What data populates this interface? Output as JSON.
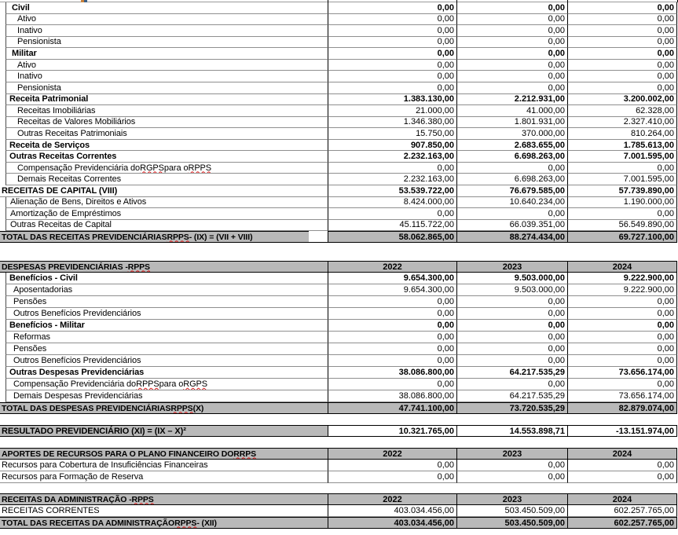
{
  "colors": {
    "header_fill": "#b9b9b9",
    "grid_gray": "#8f8f8f",
    "grid_black": "#000000",
    "squiggle_red": "#e01b1b"
  },
  "tables": [
    {
      "name": "receitas-previdenciarias",
      "rows": [
        {
          "kind": "section",
          "indent": "iB",
          "gutter": true,
          "label": "Civil",
          "values": [
            "0,00",
            "0,00",
            "0,00"
          ]
        },
        {
          "kind": "detail",
          "indent": "iC",
          "gutter": true,
          "label": "Ativo",
          "values": [
            "0,00",
            "0,00",
            "0,00"
          ]
        },
        {
          "kind": "detail",
          "indent": "iC",
          "gutter": true,
          "label": "Inativo",
          "values": [
            "0,00",
            "0,00",
            "0,00"
          ]
        },
        {
          "kind": "detail",
          "indent": "iC",
          "gutter": true,
          "label": "Pensionista",
          "values": [
            "0,00",
            "0,00",
            "0,00"
          ]
        },
        {
          "kind": "section",
          "indent": "iB",
          "gutter": true,
          "label": "Militar",
          "values": [
            "0,00",
            "0,00",
            "0,00"
          ]
        },
        {
          "kind": "detail",
          "indent": "iC",
          "gutter": true,
          "label": "Ativo",
          "values": [
            "0,00",
            "0,00",
            "0,00"
          ]
        },
        {
          "kind": "detail",
          "indent": "iC",
          "gutter": true,
          "label": "Inativo",
          "values": [
            "0,00",
            "0,00",
            "0,00"
          ]
        },
        {
          "kind": "detail",
          "indent": "iC",
          "gutter": true,
          "label": "Pensionista",
          "values": [
            "0,00",
            "0,00",
            "0,00"
          ]
        },
        {
          "kind": "section",
          "indent": "iA",
          "gutter": true,
          "label": "Receita Patrimonial",
          "values": [
            "1.383.130,00",
            "2.212.931,00",
            "3.200.002,00"
          ]
        },
        {
          "kind": "detail",
          "indent": "iC",
          "gutter": true,
          "label": "Receitas Imobiliárias",
          "values": [
            "21.000,00",
            "41.000,00",
            "62.328,00"
          ]
        },
        {
          "kind": "detail",
          "indent": "iC",
          "gutter": true,
          "label": "Receitas de Valores Mobiliários",
          "values": [
            "1.346.380,00",
            "1.801.931,00",
            "2.327.410,00"
          ]
        },
        {
          "kind": "detail",
          "indent": "iC",
          "gutter": true,
          "label": "Outras Receitas Patrimoniais",
          "values": [
            "15.750,00",
            "370.000,00",
            "810.264,00"
          ]
        },
        {
          "kind": "section",
          "indent": "iA",
          "gutter": true,
          "label": "Receita de Serviços",
          "values": [
            "907.850,00",
            "2.683.655,00",
            "1.785.613,00"
          ]
        },
        {
          "kind": "section",
          "indent": "iA",
          "gutter": true,
          "label": "Outras Receitas Correntes",
          "values": [
            "2.232.163,00",
            "6.698.263,00",
            "7.001.595,00"
          ]
        },
        {
          "kind": "detail",
          "indent": "iC",
          "gutter": true,
          "label": "Compensação Previdenciária do RGPS para o RPPS",
          "squiggles": [
            "RGPS",
            "RPPS"
          ],
          "values": [
            "0,00",
            "0,00",
            "0,00"
          ]
        },
        {
          "kind": "detail",
          "indent": "iC",
          "gutter": true,
          "label": "Demais Receitas Correntes",
          "values": [
            "2.232.163,00",
            "6.698.263,00",
            "7.001.595,00"
          ]
        },
        {
          "kind": "section",
          "indent": "i0",
          "gutter": false,
          "label": "RECEITAS DE CAPITAL (VIII)",
          "values": [
            "53.539.722,00",
            "76.679.585,00",
            "57.739.890,00"
          ]
        },
        {
          "kind": "detail",
          "indent": "iD",
          "gutter": true,
          "label": "Alienação de Bens, Direitos e Ativos",
          "values": [
            "8.424.000,00",
            "10.640.234,00",
            "1.190.000,00"
          ]
        },
        {
          "kind": "detail",
          "indent": "iD",
          "gutter": true,
          "label": "Amortização de Empréstimos",
          "values": [
            "0,00",
            "0,00",
            "0,00"
          ]
        },
        {
          "kind": "detail",
          "indent": "iD",
          "gutter": true,
          "label": "Outras Receitas de Capital",
          "values": [
            "45.115.722,00",
            "66.039.351,00",
            "56.549.890,00"
          ]
        },
        {
          "kind": "total",
          "short_label": true,
          "indent": "i0",
          "label": "TOTAL DAS RECEITAS PREVIDENCIÁRIAS RPPS - (IX) = (VII + VIII)",
          "squiggles": [
            "RPPS"
          ],
          "values": [
            "58.062.865,00",
            "88.274.434,00",
            "69.727.100,00"
          ]
        }
      ]
    },
    {
      "name": "despesas-previdenciarias",
      "rows": [
        {
          "kind": "header",
          "indent": "i0",
          "label": "DESPESAS PREVIDENCIÁRIAS - RPPS",
          "squiggles": [
            "RPPS"
          ],
          "values": [
            "2022",
            "2023",
            "2024"
          ]
        },
        {
          "kind": "section",
          "indent": "iA",
          "gutter": true,
          "label": "Benefícios - Civil",
          "values": [
            "9.654.300,00",
            "9.503.000,00",
            "9.222.900,00"
          ]
        },
        {
          "kind": "detail",
          "indent": "iE",
          "gutter": true,
          "label": "Aposentadorias",
          "values": [
            "9.654.300,00",
            "9.503.000,00",
            "9.222.900,00"
          ]
        },
        {
          "kind": "detail",
          "indent": "iE",
          "gutter": true,
          "label": "Pensões",
          "values": [
            "0,00",
            "0,00",
            "0,00"
          ]
        },
        {
          "kind": "detail",
          "indent": "iE",
          "gutter": true,
          "label": "Outros Benefícios Previdenciários",
          "values": [
            "0,00",
            "0,00",
            "0,00"
          ]
        },
        {
          "kind": "section",
          "indent": "iA",
          "gutter": true,
          "label": "Benefícios - Militar",
          "values": [
            "0,00",
            "0,00",
            "0,00"
          ]
        },
        {
          "kind": "detail",
          "indent": "iE",
          "gutter": true,
          "label": "Reformas",
          "values": [
            "0,00",
            "0,00",
            "0,00"
          ]
        },
        {
          "kind": "detail",
          "indent": "iE",
          "gutter": true,
          "label": "Pensões",
          "values": [
            "0,00",
            "0,00",
            "0,00"
          ]
        },
        {
          "kind": "detail",
          "indent": "iE",
          "gutter": true,
          "label": "Outros Benefícios Previdenciários",
          "values": [
            "0,00",
            "0,00",
            "0,00"
          ]
        },
        {
          "kind": "section",
          "indent": "iA",
          "gutter": true,
          "label": "Outras Despesas Previdenciárias",
          "values": [
            "38.086.800,00",
            "64.217.535,29",
            "73.656.174,00"
          ]
        },
        {
          "kind": "detail",
          "indent": "iE",
          "gutter": true,
          "label": "Compensação Previdenciária do RPPS para o RGPS",
          "squiggles": [
            "RPPS",
            "RGPS"
          ],
          "values": [
            "0,00",
            "0,00",
            "0,00"
          ]
        },
        {
          "kind": "detail",
          "indent": "iE",
          "gutter": true,
          "label": "Demais Despesas Previdenciárias",
          "values": [
            "38.086.800,00",
            "64.217.535,29",
            "73.656.174,00"
          ]
        },
        {
          "kind": "total",
          "indent": "i0",
          "label": "TOTAL DAS DESPESAS PREVIDENCIÁRIAS RPPS (X)",
          "squiggles": [
            "RPPS"
          ],
          "values": [
            "47.741.100,00",
            "73.720.535,29",
            "82.879.074,00"
          ]
        }
      ]
    },
    {
      "name": "resultado-previdenciario",
      "rows": [
        {
          "kind": "result",
          "indent": "i0",
          "label": "RESULTADO PREVIDENCIÁRIO (XI) = (IX – X)²",
          "values": [
            "10.321.765,00",
            "14.553.898,71",
            "-13.151.974,00"
          ]
        }
      ]
    },
    {
      "name": "aportes-plano-financeiro",
      "rows": [
        {
          "kind": "header",
          "indent": "i0",
          "label": "APORTES DE RECURSOS PARA O PLANO FINANCEIRO DO RRPS",
          "squiggles": [
            "RRPS"
          ],
          "values": [
            "2022",
            "2023",
            "2024"
          ]
        },
        {
          "kind": "detail",
          "indent": "i0",
          "label": "Recursos para Cobertura de Insuficiências Financeiras",
          "values": [
            "0,00",
            "0,00",
            "0,00"
          ]
        },
        {
          "kind": "detail",
          "indent": "i0",
          "label": "Recursos para Formação de Reserva",
          "values": [
            "0,00",
            "0,00",
            "0,00"
          ]
        }
      ]
    },
    {
      "name": "receitas-administracao",
      "rows": [
        {
          "kind": "header",
          "indent": "i0",
          "label": "RECEITAS DA ADMINISTRAÇÃO - RPPS",
          "squiggles": [
            "RPPS"
          ],
          "values": [
            "2022",
            "2023",
            "2024"
          ]
        },
        {
          "kind": "detail",
          "indent": "i0",
          "label": "RECEITAS CORRENTES",
          "values": [
            "403.034.456,00",
            "503.450.509,00",
            "602.257.765,00"
          ]
        },
        {
          "kind": "total",
          "indent": "i0",
          "label": "TOTAL DAS RECEITAS DA ADMINISTRAÇÃO RPPS - (XII)",
          "squiggles": [
            "RPPS"
          ],
          "values": [
            "403.034.456,00",
            "503.450.509,00",
            "602.257.765,00"
          ]
        }
      ]
    }
  ]
}
